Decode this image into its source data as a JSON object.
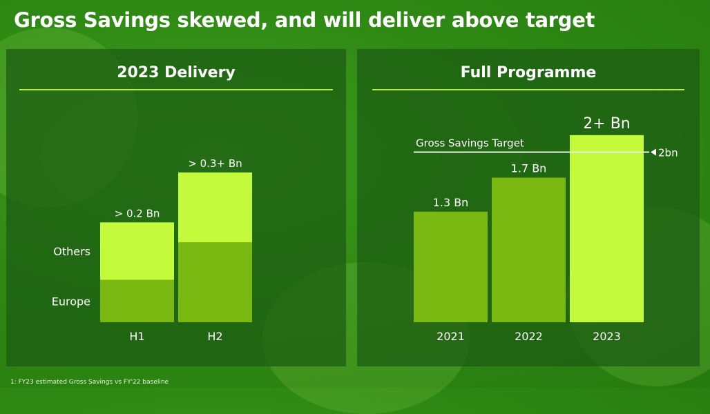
{
  "slide": {
    "title": "Gross Savings skewed, and will deliver above target",
    "footnote": "1: FY23 estimated Gross Savings vs FY'22 baseline"
  },
  "colors": {
    "bright_green": "#c4fa3c",
    "mid_green": "#7ab812",
    "panel_bg": "#1c5a14",
    "rule": "#b6ef4a"
  },
  "chart_data": [
    {
      "type": "bar",
      "stacked": true,
      "title": "2023 Delivery",
      "categories": [
        "H1",
        "H2"
      ],
      "series": [
        {
          "name": "Europe",
          "values": [
            0.085,
            0.16
          ]
        },
        {
          "name": "Others",
          "values": [
            0.115,
            0.14
          ]
        }
      ],
      "data_labels": [
        "> 0.2 Bn",
        "> 0.3+ Bn"
      ],
      "legend_placement": "left",
      "ylim": [
        0,
        0.34
      ],
      "grid": false
    },
    {
      "type": "bar",
      "title": "Full Programme",
      "categories": [
        "2021",
        "2022",
        "2023"
      ],
      "values": [
        1.3,
        1.7,
        2.2
      ],
      "data_labels": [
        "1.3 Bn",
        "1.7 Bn",
        "2+ Bn"
      ],
      "reference_line": {
        "label": "Gross Savings Target",
        "value": 2.0,
        "value_label": "2bn"
      },
      "ylim": [
        0,
        2.45
      ],
      "grid": false
    }
  ]
}
